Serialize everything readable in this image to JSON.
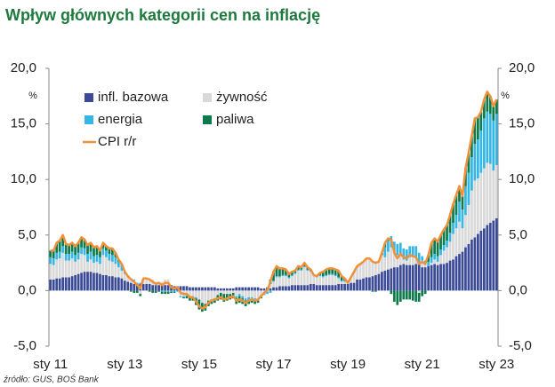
{
  "chart_data": {
    "type": "stacked-bar-line",
    "title": "Wpływ głównych kategorii cen na inflację",
    "source": "źródło: GUS, BOŚ Bank",
    "y_unit": "%",
    "y2_unit": "%",
    "legend": "upper left",
    "categories": [
      "sty 11",
      null,
      null,
      null,
      null,
      null,
      null,
      null,
      null,
      null,
      null,
      null,
      null,
      null,
      null,
      null,
      null,
      null,
      null,
      null,
      null,
      null,
      null,
      null,
      "sty 13",
      null,
      null,
      null,
      null,
      null,
      null,
      null,
      null,
      null,
      null,
      null,
      null,
      null,
      null,
      null,
      null,
      null,
      null,
      null,
      null,
      null,
      null,
      null,
      "sty 15",
      null,
      null,
      null,
      null,
      null,
      null,
      null,
      null,
      null,
      null,
      null,
      null,
      null,
      null,
      null,
      null,
      null,
      null,
      null,
      null,
      null,
      null,
      null,
      "sty 17",
      null,
      null,
      null,
      null,
      null,
      null,
      null,
      null,
      null,
      null,
      null,
      null,
      null,
      null,
      null,
      null,
      null,
      null,
      null,
      null,
      null,
      null,
      null,
      "sty 19",
      null,
      null,
      null,
      null,
      null,
      null,
      null,
      null,
      null,
      null,
      null,
      null,
      null,
      null,
      null,
      null,
      null,
      null,
      null,
      null,
      null,
      null,
      null,
      "sty 21",
      null,
      null,
      null,
      null,
      null,
      null,
      null,
      null,
      null,
      null,
      null,
      null,
      null,
      null,
      null,
      null,
      null,
      null,
      null,
      null,
      null,
      null,
      null,
      "sty 23"
    ],
    "series": [
      {
        "name": "infl. bazowa",
        "color": "#3b4a96",
        "values": [
          1.0,
          1.0,
          1.1,
          1.1,
          1.2,
          1.2,
          1.2,
          1.3,
          1.4,
          1.5,
          1.6,
          1.7,
          1.7,
          1.7,
          1.6,
          1.6,
          1.5,
          1.4,
          1.4,
          1.3,
          1.3,
          1.2,
          1.2,
          1.1,
          0.9,
          0.8,
          0.7,
          0.6,
          0.6,
          0.6,
          0.6,
          0.6,
          0.6,
          0.5,
          0.5,
          0.5,
          0.5,
          0.5,
          0.5,
          0.5,
          0.4,
          0.4,
          0.4,
          0.4,
          0.4,
          0.3,
          0.3,
          0.3,
          0.3,
          0.3,
          0.3,
          0.3,
          0.3,
          0.3,
          0.2,
          0.2,
          0.2,
          0.2,
          0.2,
          0.2,
          0.3,
          0.3,
          0.3,
          0.3,
          0.3,
          0.3,
          0.3,
          0.3,
          0.2,
          0.2,
          0.2,
          0.2,
          0.3,
          0.3,
          0.4,
          0.4,
          0.4,
          0.4,
          0.5,
          0.5,
          0.5,
          0.5,
          0.5,
          0.5,
          0.6,
          0.6,
          0.5,
          0.5,
          0.5,
          0.5,
          0.5,
          0.5,
          0.5,
          0.6,
          0.6,
          0.6,
          0.6,
          0.7,
          0.7,
          1.0,
          1.0,
          1.1,
          1.2,
          1.2,
          1.3,
          1.4,
          1.5,
          1.7,
          1.8,
          1.9,
          2.0,
          2.1,
          2.1,
          2.3,
          2.4,
          2.3,
          2.3,
          2.3,
          2.4,
          2.4,
          2.1,
          2.1,
          2.2,
          2.3,
          2.4,
          2.3,
          2.4,
          2.4,
          2.5,
          2.7,
          2.8,
          3.1,
          3.3,
          3.5,
          3.9,
          4.2,
          4.6,
          4.8,
          5.1,
          5.4,
          5.6,
          5.9,
          6.1,
          6.3,
          6.5
        ]
      },
      {
        "name": "żywność",
        "color": "#d9d9d9",
        "values": [
          1.4,
          1.3,
          1.7,
          1.8,
          2.2,
          1.5,
          1.5,
          1.6,
          1.2,
          1.3,
          1.7,
          1.5,
          0.9,
          1.1,
          0.9,
          1.0,
          0.9,
          1.8,
          1.6,
          1.4,
          1.3,
          1.2,
          0.9,
          0.7,
          0.6,
          0.4,
          0.3,
          0.3,
          0.0,
          -0.3,
          0.5,
          0.5,
          0.5,
          0.5,
          0.3,
          0.3,
          0.3,
          0.5,
          0.5,
          0.0,
          0.0,
          0.0,
          -0.5,
          -0.5,
          -0.4,
          -0.5,
          -0.5,
          -0.6,
          -0.8,
          -1.1,
          -1.2,
          -0.9,
          -0.8,
          -0.7,
          -0.4,
          -0.2,
          -0.3,
          -0.3,
          -0.3,
          -0.2,
          -0.5,
          -0.3,
          -0.5,
          -0.7,
          -0.6,
          -0.6,
          -0.7,
          -0.7,
          -0.4,
          -0.2,
          -0.1,
          0.4,
          0.5,
          0.9,
          0.8,
          0.9,
          0.9,
          0.7,
          0.8,
          1.0,
          1.3,
          1.3,
          1.6,
          1.3,
          1.1,
          0.7,
          0.7,
          0.8,
          0.7,
          0.8,
          0.9,
          0.9,
          0.8,
          0.5,
          0.2,
          0.2,
          0.1,
          0.5,
          0.9,
          1.1,
          1.3,
          1.5,
          1.6,
          1.7,
          1.4,
          1.2,
          1.1,
          1.5,
          1.2,
          1.6,
          1.9,
          1.3,
          1.1,
          1.0,
          0.4,
          0.4,
          0.7,
          0.7,
          0.6,
          -0.2,
          0.6,
          0.2,
          0.0,
          0.2,
          0.4,
          0.3,
          0.8,
          1.2,
          1.4,
          1.7,
          2.3,
          2.5,
          2.9,
          2.1,
          2.9,
          3.5,
          4.4,
          5.1,
          5.0,
          5.2,
          5.4,
          5.6,
          5.3,
          4.5,
          4.8
        ]
      },
      {
        "name": "energia",
        "color": "#35b6e4",
        "values": [
          0.6,
          0.6,
          0.6,
          0.6,
          0.6,
          0.6,
          0.6,
          0.6,
          0.6,
          0.6,
          0.6,
          0.6,
          0.7,
          0.7,
          0.6,
          0.6,
          0.6,
          0.6,
          0.6,
          0.6,
          0.6,
          0.6,
          0.5,
          0.5,
          0.2,
          0.1,
          0.1,
          0.1,
          0.1,
          0.1,
          0.0,
          0.0,
          0.0,
          0.0,
          0.0,
          0.0,
          -0.1,
          -0.1,
          -0.1,
          -0.1,
          -0.1,
          -0.1,
          -0.1,
          -0.1,
          -0.1,
          -0.1,
          -0.1,
          -0.1,
          0.0,
          0.0,
          0.0,
          0.0,
          0.0,
          0.0,
          0.0,
          0.0,
          0.0,
          0.0,
          0.0,
          0.0,
          -0.2,
          -0.2,
          -0.2,
          -0.2,
          -0.2,
          -0.2,
          -0.2,
          -0.2,
          -0.2,
          -0.2,
          -0.2,
          -0.2,
          0.1,
          0.1,
          0.1,
          0.1,
          0.1,
          0.1,
          0.1,
          0.1,
          0.1,
          0.1,
          0.1,
          0.1,
          0.1,
          0.1,
          0.1,
          0.1,
          0.1,
          0.1,
          0.1,
          0.1,
          0.1,
          0.1,
          0.1,
          0.1,
          0.0,
          0.0,
          0.0,
          0.0,
          0.0,
          0.0,
          0.0,
          0.0,
          0.0,
          0.0,
          0.0,
          0.0,
          0.9,
          1.0,
          1.0,
          1.0,
          1.0,
          1.0,
          1.0,
          1.0,
          1.0,
          1.0,
          1.0,
          1.0,
          0.4,
          0.4,
          0.4,
          0.5,
          0.5,
          0.5,
          0.5,
          0.5,
          0.6,
          0.8,
          1.0,
          1.2,
          1.8,
          1.7,
          2.6,
          2.9,
          3.0,
          3.3,
          3.5,
          3.8,
          4.5,
          4.6,
          4.5,
          4.5,
          4.6
        ]
      },
      {
        "name": "paliwa",
        "color": "#0e7a4b",
        "values": [
          0.6,
          0.7,
          0.9,
          1.0,
          1.0,
          0.9,
          0.8,
          0.8,
          0.8,
          0.9,
          0.9,
          0.8,
          0.8,
          0.8,
          0.8,
          0.8,
          0.6,
          0.5,
          0.4,
          0.5,
          0.6,
          0.4,
          0.2,
          0.1,
          0.0,
          0.0,
          -0.1,
          -0.2,
          -0.2,
          -0.2,
          0.0,
          0.0,
          -0.1,
          -0.2,
          -0.2,
          -0.1,
          -0.2,
          -0.2,
          -0.2,
          -0.1,
          -0.1,
          0.0,
          0.0,
          -0.1,
          -0.2,
          -0.3,
          -0.3,
          -0.6,
          -0.9,
          -0.8,
          -0.6,
          -0.5,
          -0.4,
          -0.4,
          -0.5,
          -0.6,
          -0.7,
          -0.6,
          -0.5,
          -0.5,
          -0.5,
          -0.6,
          -0.5,
          -0.5,
          -0.4,
          -0.3,
          -0.3,
          -0.2,
          -0.1,
          0.0,
          0.1,
          0.4,
          0.8,
          0.9,
          0.7,
          0.6,
          0.5,
          0.3,
          0.3,
          0.2,
          0.3,
          0.2,
          0.3,
          0.2,
          0.1,
          0.0,
          0.0,
          0.2,
          0.4,
          0.5,
          0.5,
          0.5,
          0.5,
          0.6,
          0.4,
          0.2,
          0.0,
          0.0,
          0.1,
          0.1,
          0.1,
          0.0,
          0.1,
          0.0,
          -0.1,
          -0.1,
          0.0,
          0.2,
          0.4,
          0.2,
          -0.3,
          -1.0,
          -1.3,
          -1.0,
          -0.8,
          -0.8,
          -0.8,
          -0.9,
          -1.0,
          -0.8,
          -0.5,
          -0.3,
          0.6,
          1.3,
          1.4,
          1.3,
          1.3,
          1.4,
          1.4,
          1.6,
          1.7,
          1.8,
          1.4,
          1.2,
          1.6,
          1.8,
          1.9,
          2.3,
          2.0,
          1.7,
          1.7,
          1.8,
          1.6,
          1.3,
          1.3
        ]
      }
    ],
    "line": {
      "name": "CPI r/r",
      "color": "#f0913a",
      "values": [
        3.6,
        3.6,
        4.3,
        4.5,
        5.0,
        4.2,
        4.1,
        4.3,
        4.0,
        4.3,
        4.8,
        4.6,
        4.1,
        4.3,
        3.9,
        4.0,
        3.6,
        4.3,
        4.0,
        3.8,
        3.8,
        3.4,
        2.8,
        2.4,
        1.7,
        1.3,
        1.0,
        0.8,
        0.5,
        0.2,
        1.1,
        1.1,
        1.0,
        0.8,
        0.6,
        0.7,
        0.5,
        0.7,
        0.7,
        0.3,
        0.2,
        0.3,
        -0.2,
        -0.3,
        -0.3,
        -0.6,
        -0.6,
        -1.0,
        -1.4,
        -1.6,
        -1.5,
        -1.1,
        -0.9,
        -0.8,
        -0.7,
        -0.6,
        -0.8,
        -0.7,
        -0.6,
        -0.5,
        -0.9,
        -0.8,
        -0.9,
        -1.1,
        -0.9,
        -0.8,
        -0.9,
        -0.8,
        -0.5,
        -0.2,
        0.0,
        0.8,
        1.7,
        2.2,
        2.0,
        2.0,
        1.9,
        1.5,
        1.7,
        1.8,
        2.2,
        2.1,
        2.5,
        2.1,
        1.9,
        1.4,
        1.3,
        1.6,
        1.7,
        1.9,
        2.0,
        2.0,
        1.9,
        1.8,
        1.3,
        1.1,
        0.7,
        1.2,
        1.7,
        2.2,
        2.4,
        2.6,
        2.9,
        2.9,
        2.6,
        2.5,
        2.6,
        3.4,
        4.3,
        4.7,
        4.6,
        3.4,
        2.9,
        3.3,
        3.0,
        2.9,
        3.2,
        3.1,
        3.0,
        2.4,
        2.6,
        2.4,
        3.2,
        4.3,
        4.7,
        4.4,
        5.0,
        5.5,
        5.9,
        6.8,
        7.8,
        8.6,
        9.4,
        8.5,
        11.0,
        12.4,
        13.9,
        15.5,
        15.6,
        16.1,
        17.2,
        17.9,
        17.5,
        16.6,
        17.2
      ]
    },
    "ylim": [
      -5,
      20
    ],
    "yticks": [
      {
        "value": -5,
        "label": "-5,0"
      },
      {
        "value": 0,
        "label": "0,0"
      },
      {
        "value": 5,
        "label": "5,0"
      },
      {
        "value": 10,
        "label": "10,0"
      },
      {
        "value": 15,
        "label": "15,0"
      },
      {
        "value": 20,
        "label": "20,0"
      }
    ],
    "y2lim": [
      -5,
      20
    ],
    "y2ticks": [
      {
        "value": -5,
        "label": "-5,0"
      },
      {
        "value": 0,
        "label": "0,0"
      },
      {
        "value": 5,
        "label": "5,0"
      },
      {
        "value": 10,
        "label": "10,0"
      },
      {
        "value": 15,
        "label": "15,0"
      },
      {
        "value": 20,
        "label": "20,0"
      }
    ],
    "grid": false
  }
}
